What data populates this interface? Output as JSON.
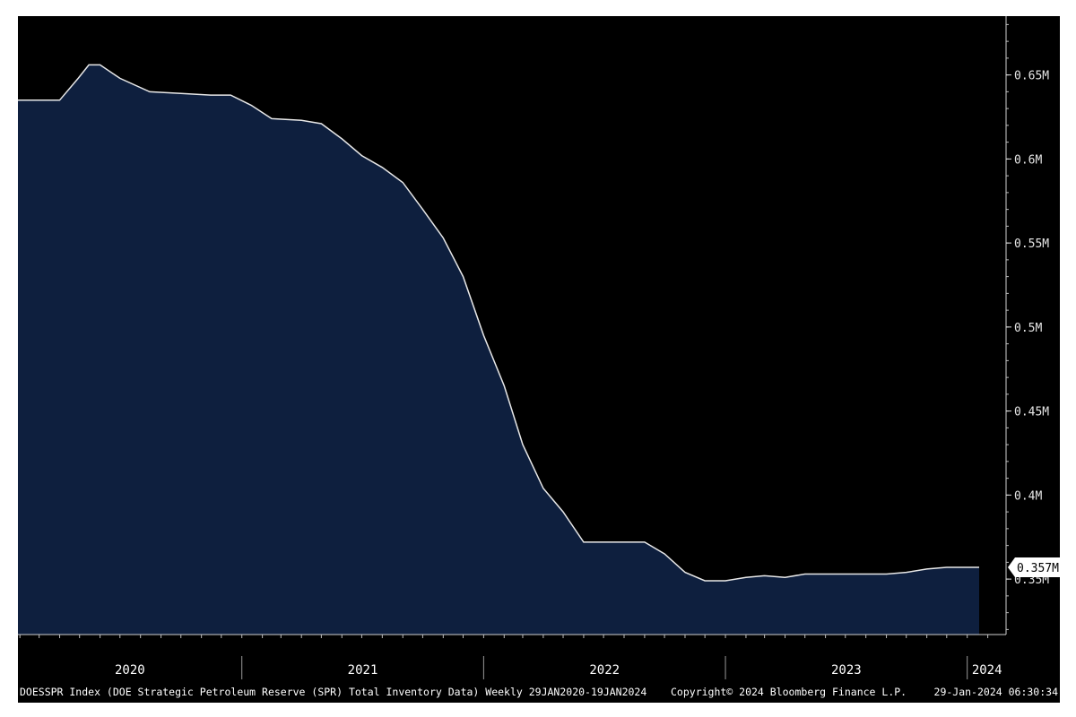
{
  "chart_data": {
    "type": "area",
    "x": [
      "2020-01-29",
      "2020-03-01",
      "2020-04-01",
      "2020-04-29",
      "2020-05-15",
      "2020-06-01",
      "2020-07-01",
      "2020-08-15",
      "2020-10-01",
      "2020-11-15",
      "2020-12-15",
      "2021-01-15",
      "2021-02-15",
      "2021-04-01",
      "2021-05-01",
      "2021-06-01",
      "2021-07-01",
      "2021-08-01",
      "2021-09-01",
      "2021-10-01",
      "2021-11-01",
      "2021-12-01",
      "2022-01-01",
      "2022-02-01",
      "2022-03-01",
      "2022-04-01",
      "2022-05-01",
      "2022-06-01",
      "2022-07-01",
      "2022-08-01",
      "2022-09-01",
      "2022-10-01",
      "2022-11-01",
      "2022-12-01",
      "2023-01-01",
      "2023-02-01",
      "2023-03-01",
      "2023-04-01",
      "2023-05-01",
      "2023-06-01",
      "2023-07-01",
      "2023-08-01",
      "2023-09-01",
      "2023-10-01",
      "2023-11-01",
      "2023-12-01",
      "2024-01-19"
    ],
    "series": [
      {
        "values": [
          0.635,
          0.635,
          0.635,
          0.648,
          0.656,
          0.656,
          0.648,
          0.64,
          0.639,
          0.638,
          0.638,
          0.632,
          0.624,
          0.623,
          0.621,
          0.612,
          0.602,
          0.595,
          0.586,
          0.57,
          0.553,
          0.53,
          0.495,
          0.465,
          0.43,
          0.404,
          0.39,
          0.372,
          0.372,
          0.372,
          0.372,
          0.365,
          0.354,
          0.349,
          0.349,
          0.351,
          0.352,
          0.351,
          0.353,
          0.353,
          0.353,
          0.353,
          0.353,
          0.354,
          0.356,
          0.357,
          0.357
        ]
      }
    ],
    "yticks": [
      "0.35M",
      "0.4M",
      "0.45M",
      "0.5M",
      "0.55M",
      "0.6M",
      "0.65M"
    ],
    "xtick_labels": [
      "2020",
      "2021",
      "2022",
      "2023",
      "2024"
    ],
    "ylim": [
      0.317,
      0.685
    ],
    "last_value_label": "0.357M",
    "footer": {
      "left": "DOESSPR Index (DOE Strategic Petroleum Reserve (SPR) Total Inventory Data)  Weekly 29JAN2020-19JAN2024",
      "center": "Copyright© 2024 Bloomberg Finance L.P.",
      "right": "29-Jan-2024 06:30:34"
    },
    "colors": {
      "background": "#000000",
      "fill": "#0e1f3e",
      "line": "#e8e8e8",
      "text": "#ffffff",
      "label_bg": "#ffffff"
    }
  }
}
